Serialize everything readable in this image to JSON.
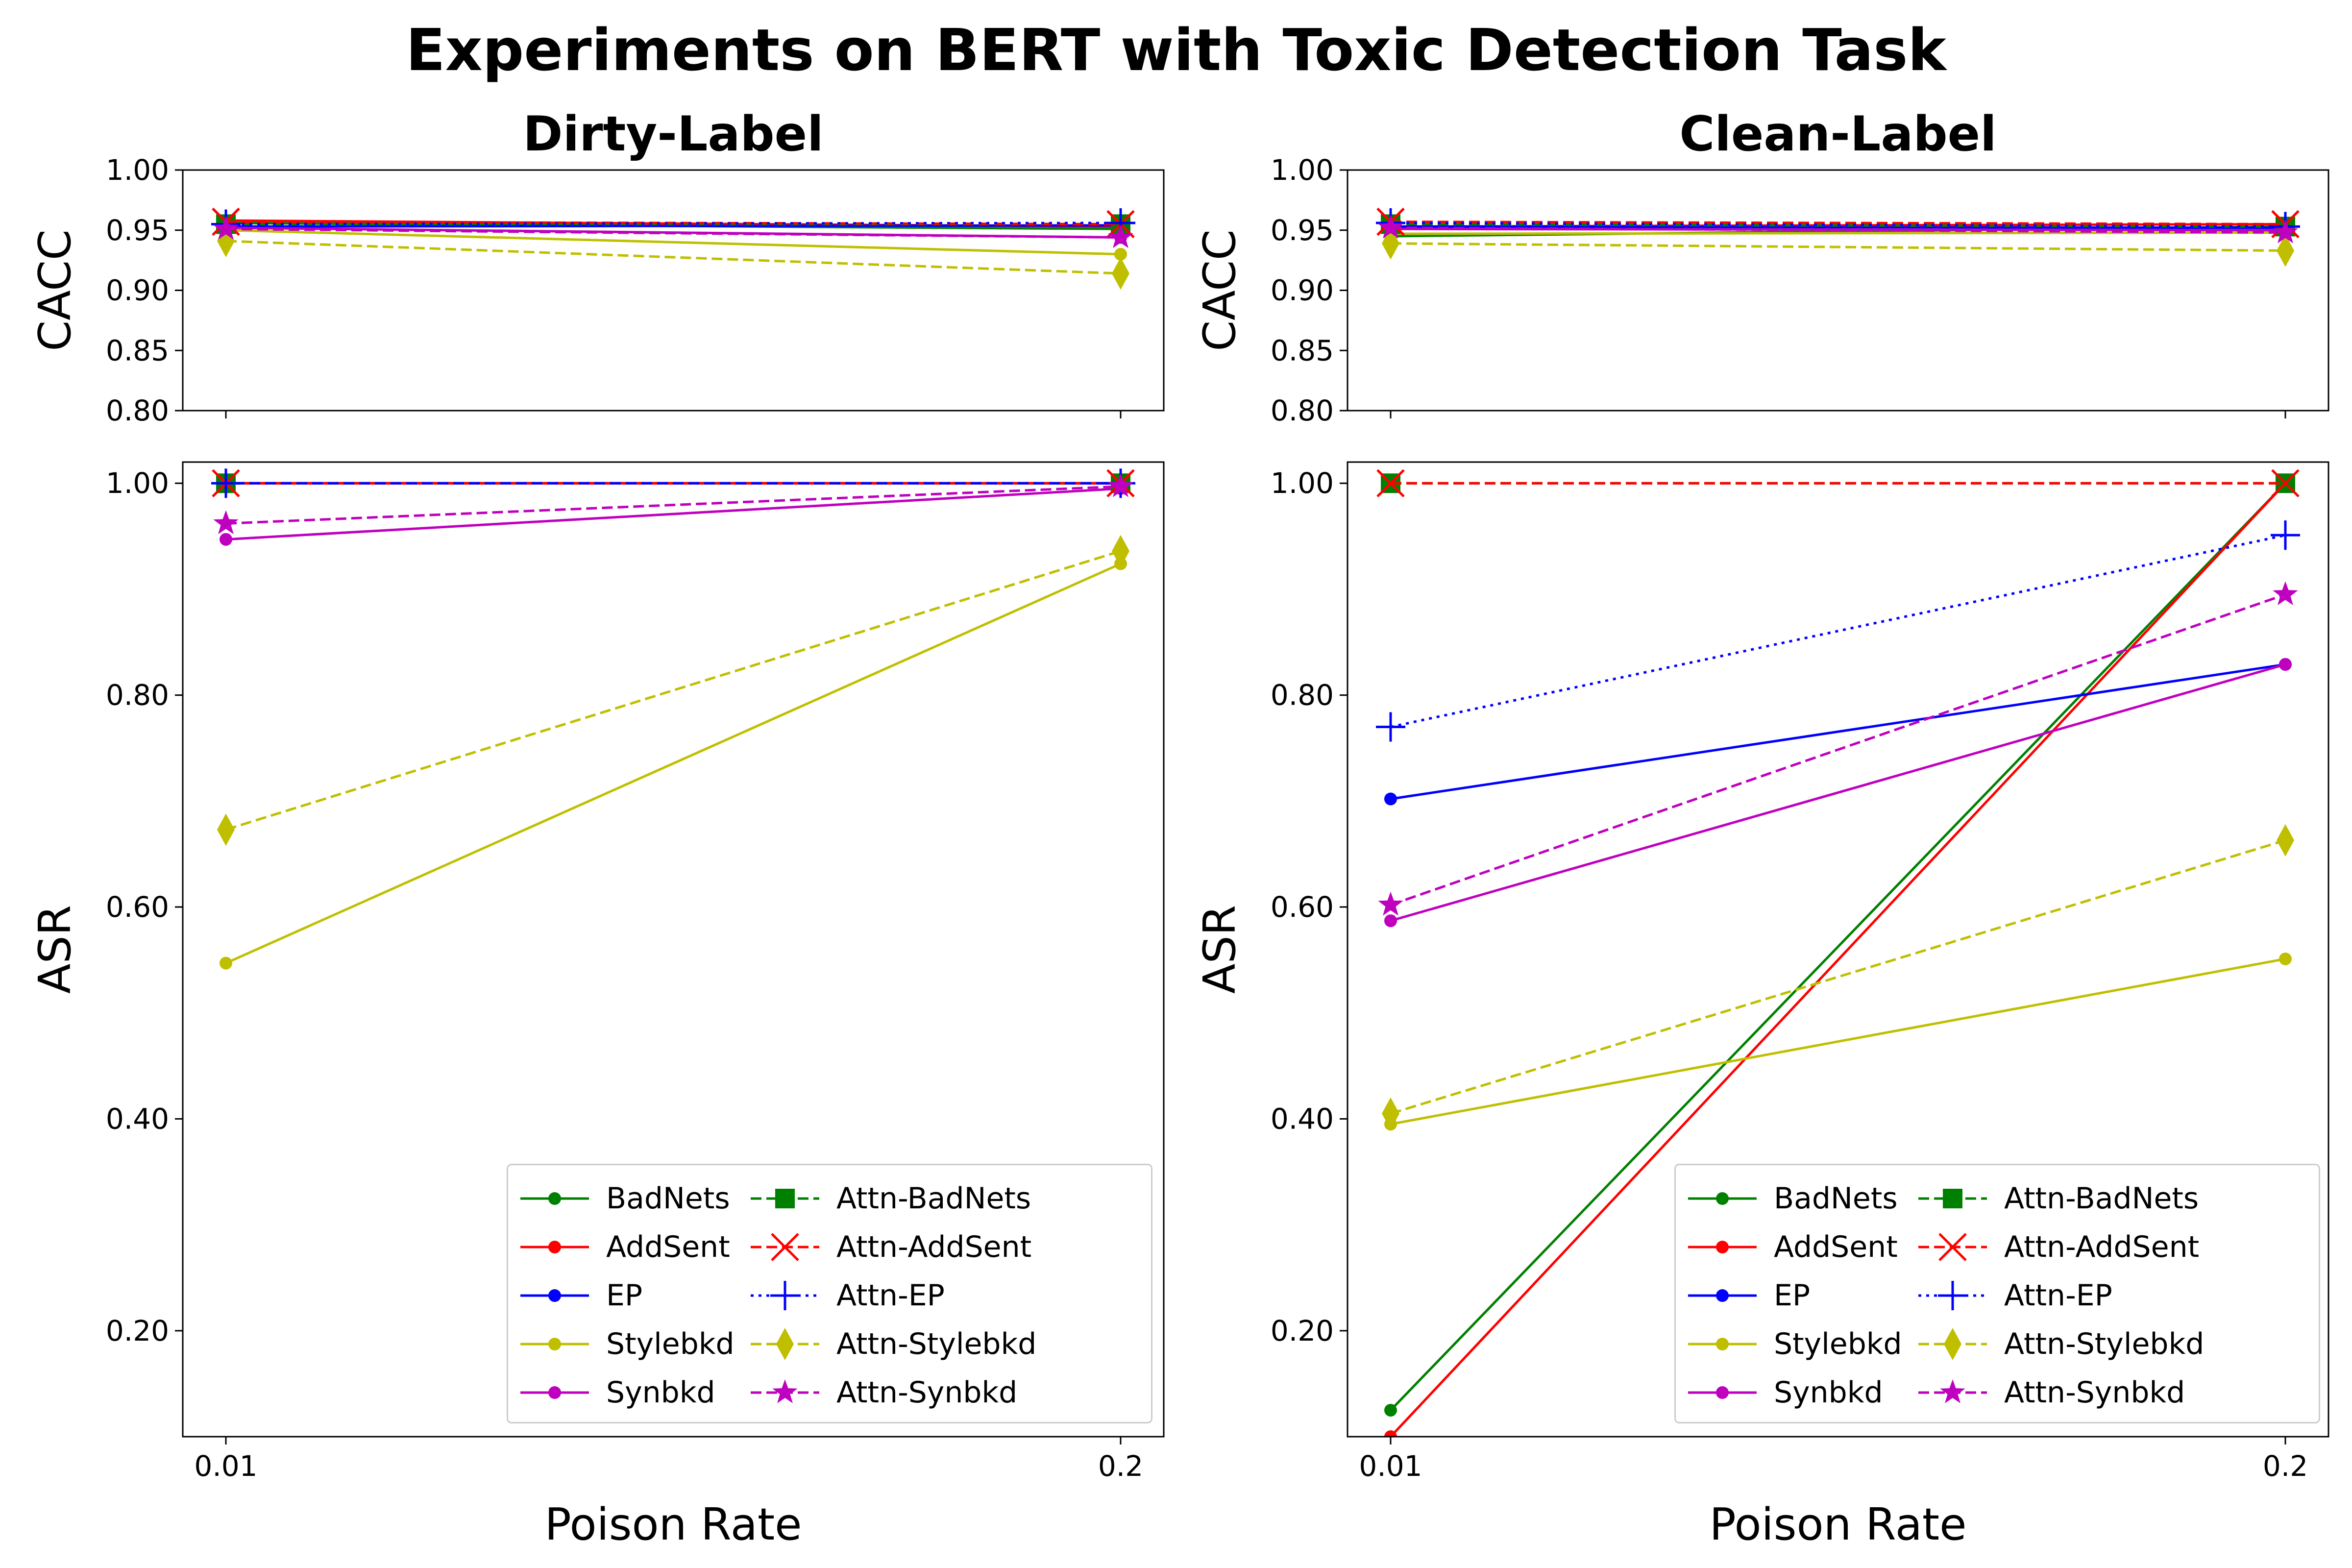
{
  "title": "Experiments on BERT with Toxic Detection Task",
  "xlabel": "Poison Rate",
  "chart_data": [
    {
      "type": "line",
      "panel": "Dirty-Label CACC",
      "title": "Dirty-Label",
      "ylabel": "CACC",
      "categories": [
        "0.01",
        "0.2"
      ],
      "ylim": [
        0.8,
        1.0
      ],
      "yticks": [
        "0.80",
        "0.85",
        "0.90",
        "0.95",
        "1.00"
      ],
      "series": [
        {
          "name": "BadNets",
          "values": [
            0.956,
            0.951
          ]
        },
        {
          "name": "AddSent",
          "values": [
            0.958,
            0.953
          ]
        },
        {
          "name": "EP",
          "values": [
            0.953,
            0.954
          ]
        },
        {
          "name": "Stylebkd",
          "values": [
            0.95,
            0.93
          ]
        },
        {
          "name": "Synbkd",
          "values": [
            0.952,
            0.944
          ]
        },
        {
          "name": "Attn-BadNets",
          "values": [
            0.955,
            0.955
          ]
        },
        {
          "name": "Attn-AddSent",
          "values": [
            0.957,
            0.955
          ]
        },
        {
          "name": "Attn-EP",
          "values": [
            0.955,
            0.956
          ]
        },
        {
          "name": "Attn-Stylebkd",
          "values": [
            0.941,
            0.914
          ]
        },
        {
          "name": "Attn-Synbkd",
          "values": [
            0.951,
            0.944
          ]
        }
      ]
    },
    {
      "type": "line",
      "panel": "Clean-Label CACC",
      "title": "Clean-Label",
      "ylabel": "CACC",
      "categories": [
        "0.01",
        "0.2"
      ],
      "ylim": [
        0.8,
        1.0
      ],
      "yticks": [
        "0.80",
        "0.85",
        "0.90",
        "0.95",
        "1.00"
      ],
      "series": [
        {
          "name": "BadNets",
          "values": [
            0.945,
            0.953
          ]
        },
        {
          "name": "AddSent",
          "values": [
            0.953,
            0.955
          ]
        },
        {
          "name": "EP",
          "values": [
            0.953,
            0.952
          ]
        },
        {
          "name": "Stylebkd",
          "values": [
            0.947,
            0.948
          ]
        },
        {
          "name": "Synbkd",
          "values": [
            0.951,
            0.95
          ]
        },
        {
          "name": "Attn-BadNets",
          "values": [
            0.955,
            0.953
          ]
        },
        {
          "name": "Attn-AddSent",
          "values": [
            0.957,
            0.955
          ]
        },
        {
          "name": "Attn-EP",
          "values": [
            0.956,
            0.953
          ]
        },
        {
          "name": "Attn-Stylebkd",
          "values": [
            0.939,
            0.933
          ]
        },
        {
          "name": "Attn-Synbkd",
          "values": [
            0.952,
            0.948
          ]
        }
      ]
    },
    {
      "type": "line",
      "panel": "Dirty-Label ASR",
      "ylabel": "ASR",
      "xlabel": "Poison Rate",
      "categories": [
        "0.01",
        "0.2"
      ],
      "ylim": [
        0.1,
        1.02
      ],
      "yticks": [
        "0.20",
        "0.40",
        "0.60",
        "0.80",
        "1.00"
      ],
      "series": [
        {
          "name": "BadNets",
          "values": [
            1.0,
            1.0
          ]
        },
        {
          "name": "AddSent",
          "values": [
            1.0,
            1.0
          ]
        },
        {
          "name": "EP",
          "values": [
            1.0,
            1.0
          ]
        },
        {
          "name": "Stylebkd",
          "values": [
            0.547,
            0.924
          ]
        },
        {
          "name": "Synbkd",
          "values": [
            0.947,
            0.995
          ]
        },
        {
          "name": "Attn-BadNets",
          "values": [
            1.0,
            1.0
          ]
        },
        {
          "name": "Attn-AddSent",
          "values": [
            1.0,
            1.0
          ]
        },
        {
          "name": "Attn-EP",
          "values": [
            1.0,
            1.0
          ]
        },
        {
          "name": "Attn-Stylebkd",
          "values": [
            0.673,
            0.936
          ]
        },
        {
          "name": "Attn-Synbkd",
          "values": [
            0.962,
            0.997
          ]
        }
      ]
    },
    {
      "type": "line",
      "panel": "Clean-Label ASR",
      "ylabel": "ASR",
      "xlabel": "Poison Rate",
      "categories": [
        "0.01",
        "0.2"
      ],
      "ylim": [
        0.1,
        1.02
      ],
      "yticks": [
        "0.20",
        "0.40",
        "0.60",
        "0.80",
        "1.00"
      ],
      "series": [
        {
          "name": "BadNets",
          "values": [
            0.125,
            1.0
          ]
        },
        {
          "name": "AddSent",
          "values": [
            0.1,
            1.0
          ]
        },
        {
          "name": "EP",
          "values": [
            0.702,
            0.829
          ]
        },
        {
          "name": "Stylebkd",
          "values": [
            0.395,
            0.551
          ]
        },
        {
          "name": "Synbkd",
          "values": [
            0.587,
            0.829
          ]
        },
        {
          "name": "Attn-BadNets",
          "values": [
            1.0,
            1.0
          ]
        },
        {
          "name": "Attn-AddSent",
          "values": [
            1.0,
            1.0
          ]
        },
        {
          "name": "Attn-EP",
          "values": [
            0.77,
            0.951
          ]
        },
        {
          "name": "Attn-Stylebkd",
          "values": [
            0.405,
            0.663
          ]
        },
        {
          "name": "Attn-Synbkd",
          "values": [
            0.602,
            0.895
          ]
        }
      ]
    }
  ],
  "series_styles": {
    "BadNets": {
      "color": "#008000",
      "dash": "solid",
      "marker": "dot"
    },
    "AddSent": {
      "color": "#ff0000",
      "dash": "solid",
      "marker": "dot"
    },
    "EP": {
      "color": "#0000ff",
      "dash": "solid",
      "marker": "dot"
    },
    "Stylebkd": {
      "color": "#bfbf00",
      "dash": "solid",
      "marker": "dot"
    },
    "Synbkd": {
      "color": "#bf00bf",
      "dash": "solid",
      "marker": "dot"
    },
    "Attn-BadNets": {
      "color": "#008000",
      "dash": "dashed",
      "marker": "square"
    },
    "Attn-AddSent": {
      "color": "#ff0000",
      "dash": "dashed",
      "marker": "x"
    },
    "Attn-EP": {
      "color": "#0000ff",
      "dash": "dotted",
      "marker": "plus"
    },
    "Attn-Stylebkd": {
      "color": "#bfbf00",
      "dash": "dashed",
      "marker": "diamond"
    },
    "Attn-Synbkd": {
      "color": "#bf00bf",
      "dash": "dashed",
      "marker": "star"
    }
  },
  "legend": {
    "col1": [
      "BadNets",
      "AddSent",
      "EP",
      "Stylebkd",
      "Synbkd"
    ],
    "col2": [
      "Attn-BadNets",
      "Attn-AddSent",
      "Attn-EP",
      "Attn-Stylebkd",
      "Attn-Synbkd"
    ],
    "location": "lower right"
  }
}
